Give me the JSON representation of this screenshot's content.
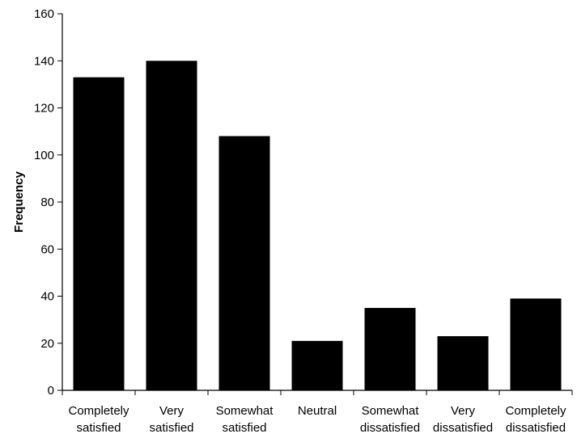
{
  "chart_data": {
    "type": "bar",
    "title": "",
    "xlabel": "",
    "ylabel": "Frequency",
    "ylim": [
      0,
      160
    ],
    "yticks": [
      0,
      20,
      40,
      60,
      80,
      100,
      120,
      140,
      160
    ],
    "grid": false,
    "categories": [
      [
        "Completely",
        "satisfied"
      ],
      [
        "Very",
        "satisfied"
      ],
      [
        "Somewhat",
        "satisfied"
      ],
      [
        "Neutral"
      ],
      [
        "Somewhat",
        "dissatisfied"
      ],
      [
        "Very",
        "dissatisfied"
      ],
      [
        "Completely",
        "dissatisfied"
      ]
    ],
    "values": [
      133,
      140,
      108,
      21,
      35,
      23,
      39
    ],
    "bar_color": "#000000"
  }
}
